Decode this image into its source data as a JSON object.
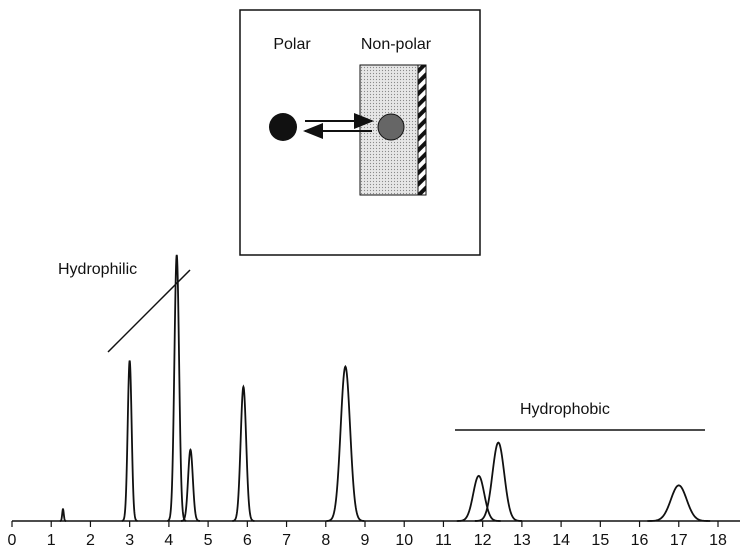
{
  "chart_data": {
    "type": "chromatogram",
    "annotations": {
      "hydrophilic": "Hydrophilic",
      "hydrophobic": "Hydrophobic"
    },
    "inset": {
      "polar": "Polar",
      "nonpolar": "Non-polar"
    },
    "peaks": [
      {
        "x": 1.3,
        "height": 10,
        "width": 0.02
      },
      {
        "x": 3.0,
        "height": 135,
        "width": 0.05
      },
      {
        "x": 4.2,
        "height": 224,
        "width": 0.06
      },
      {
        "x": 4.55,
        "height": 60,
        "width": 0.06
      },
      {
        "x": 5.9,
        "height": 113,
        "width": 0.07
      },
      {
        "x": 8.5,
        "height": 130,
        "width": 0.12
      },
      {
        "x": 11.9,
        "height": 38,
        "width": 0.14
      },
      {
        "x": 12.4,
        "height": 66,
        "width": 0.15
      },
      {
        "x": 17.0,
        "height": 30,
        "width": 0.2
      }
    ],
    "color": "#111111",
    "xlim": [
      0,
      18
    ],
    "ylim": [
      0,
      250
    ],
    "xticks": [
      0,
      1,
      2,
      3,
      4,
      5,
      6,
      7,
      8,
      9,
      10,
      11,
      12,
      13,
      14,
      15,
      16,
      17,
      18
    ]
  }
}
